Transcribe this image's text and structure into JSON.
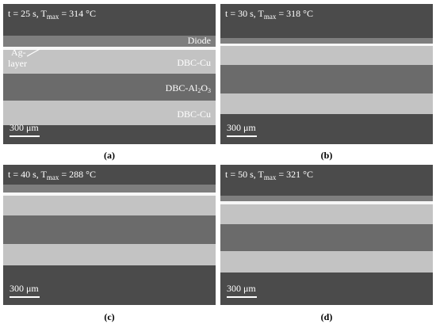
{
  "panels": [
    {
      "caption": "(a)",
      "temperature": {
        "prefix": "t = 25 s, T",
        "sub": "max",
        "suffix": "= 314 °C"
      },
      "scale_bar": "300 μm",
      "annotations": {
        "diode": "Diode",
        "ag_layer": [
          "Ag-",
          "layer"
        ],
        "dbc_cu_top": "DBC-Cu",
        "dbc_al2o3": {
          "prefix": "DBC-Al",
          "sub1": "2",
          "mid": "O",
          "sub2": "3"
        },
        "dbc_cu_bottom": "DBC-Cu"
      }
    },
    {
      "caption": "(b)",
      "temperature": {
        "prefix": "t = 30 s, T",
        "sub": "max",
        "suffix": "= 318 °C"
      },
      "scale_bar": "300 μm"
    },
    {
      "caption": "(c)",
      "temperature": {
        "prefix": "t = 40 s, T",
        "sub": "max",
        "suffix": "= 288 °C"
      },
      "scale_bar": "300 μm"
    },
    {
      "caption": "(d)",
      "temperature": {
        "prefix": "t = 50 s, T",
        "sub": "max",
        "suffix": "= 321 °C"
      },
      "scale_bar": "300 μm"
    }
  ]
}
